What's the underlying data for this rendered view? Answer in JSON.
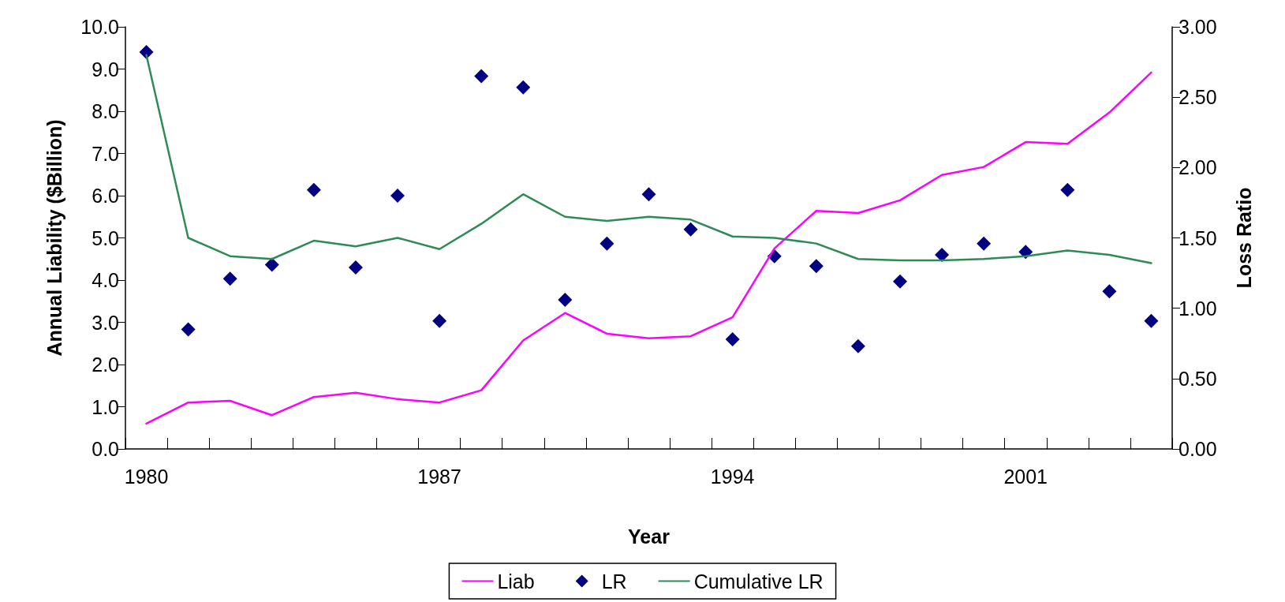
{
  "chart_data": {
    "type": "line",
    "xlabel": "Year",
    "ylabel": "Annual Liability ($Billion)",
    "y2label": "Loss Ratio",
    "categories": [
      "1980",
      null,
      null,
      null,
      null,
      null,
      null,
      "1987",
      null,
      null,
      null,
      null,
      null,
      null,
      "1994",
      null,
      null,
      null,
      null,
      null,
      null,
      "2001",
      null,
      null,
      null
    ],
    "ylim": [
      0,
      10
    ],
    "yticks": [
      {
        "value": 0,
        "label": "0.0"
      },
      {
        "value": 1,
        "label": "1.0"
      },
      {
        "value": 2,
        "label": "2.0"
      },
      {
        "value": 3,
        "label": "3.0"
      },
      {
        "value": 4,
        "label": "4.0"
      },
      {
        "value": 5,
        "label": "5.0"
      },
      {
        "value": 6,
        "label": "6.0"
      },
      {
        "value": 7,
        "label": "7.0"
      },
      {
        "value": 8,
        "label": "8.0"
      },
      {
        "value": 9,
        "label": "9.0"
      },
      {
        "value": 10,
        "label": "10.0"
      }
    ],
    "y2lim": [
      0,
      3
    ],
    "y2ticks": [
      {
        "value": 0,
        "label": "0.00"
      },
      {
        "value": 0.5,
        "label": "0.50"
      },
      {
        "value": 1,
        "label": "1.00"
      },
      {
        "value": 1.5,
        "label": "1.50"
      },
      {
        "value": 2,
        "label": "2.00"
      },
      {
        "value": 2.5,
        "label": "2.50"
      },
      {
        "value": 3,
        "label": "3.00"
      }
    ],
    "grid": false,
    "legend": "bottom",
    "series": [
      {
        "name": "Liab",
        "color": "#ff00ff",
        "values": [
          0.6,
          1.1,
          1.14,
          0.8,
          1.23,
          1.33,
          1.18,
          1.1,
          1.39,
          2.57,
          3.22,
          2.73,
          2.62,
          2.67,
          3.12,
          4.75,
          5.64,
          5.59,
          5.89,
          6.49,
          6.68,
          7.27,
          7.23,
          7.97,
          8.92
        ]
      },
      {
        "name": "LR",
        "type": "scatter",
        "marker": "diamond",
        "axis": "y2",
        "color": "#000080",
        "values": [
          2.82,
          0.85,
          1.21,
          1.31,
          1.84,
          1.29,
          1.8,
          0.91,
          2.65,
          2.57,
          1.06,
          1.46,
          1.81,
          1.56,
          0.78,
          1.37,
          1.3,
          0.73,
          1.19,
          1.38,
          1.46,
          1.4,
          1.84,
          1.12,
          0.91
        ]
      },
      {
        "name": "Cumulative LR",
        "axis": "y2",
        "color": "#2e8b57",
        "values": [
          2.8,
          1.5,
          1.37,
          1.35,
          1.48,
          1.44,
          1.5,
          1.42,
          1.6,
          1.81,
          1.65,
          1.62,
          1.65,
          1.63,
          1.51,
          1.5,
          1.46,
          1.35,
          1.34,
          1.34,
          1.35,
          1.37,
          1.41,
          1.38,
          1.32
        ]
      }
    ]
  }
}
